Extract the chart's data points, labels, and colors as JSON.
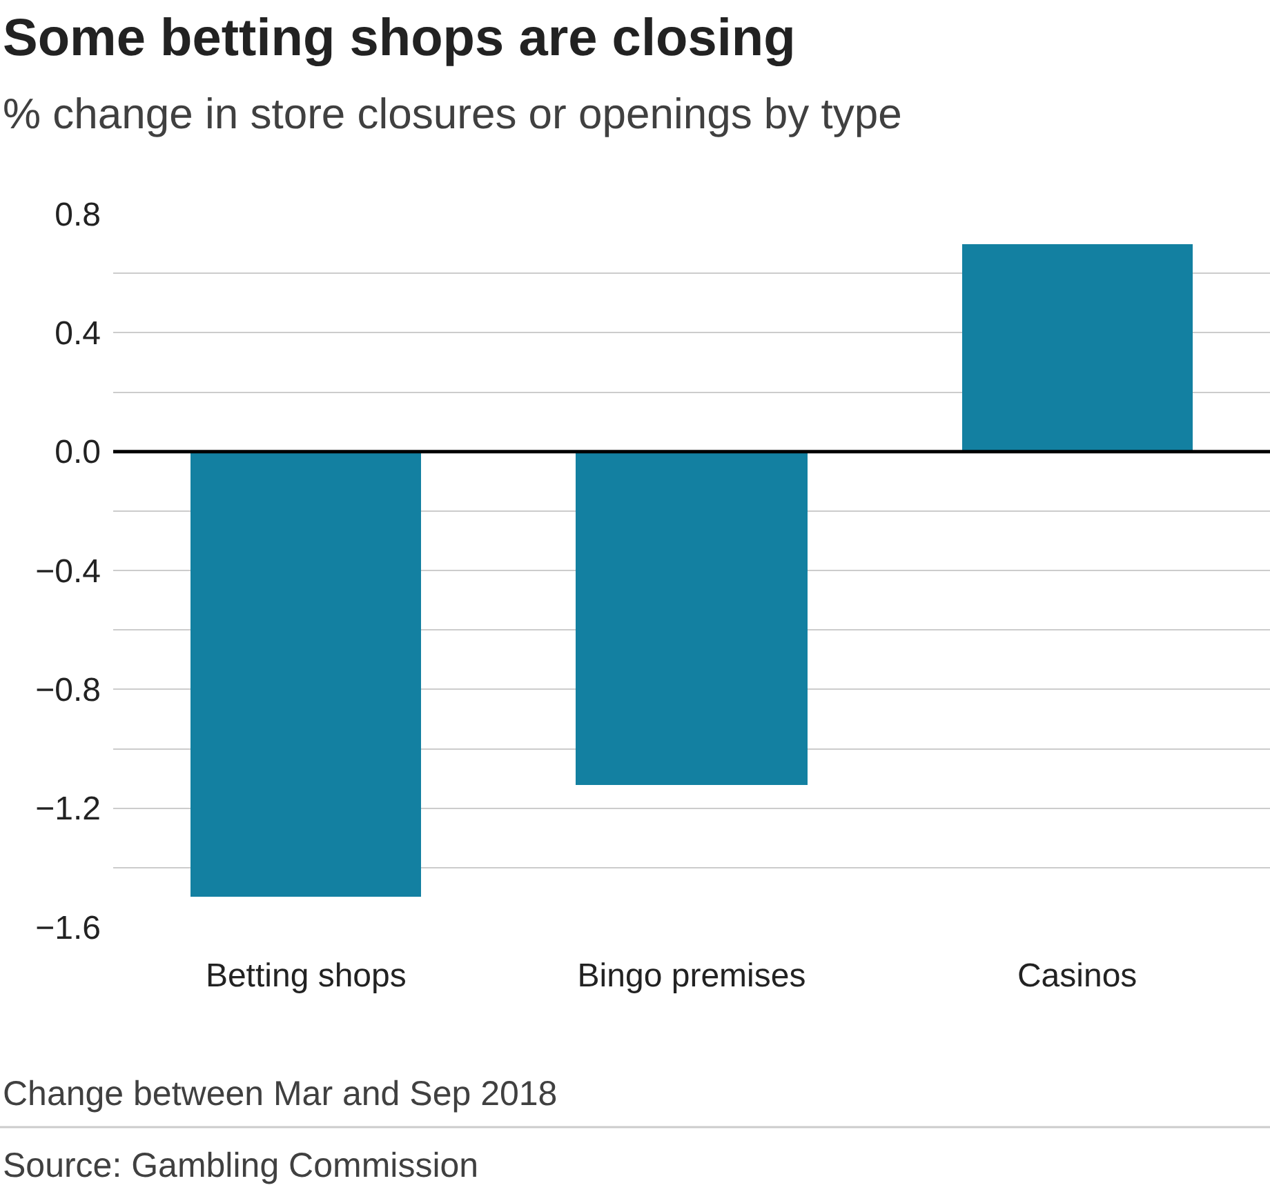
{
  "chart_data": {
    "type": "bar",
    "title": "Some betting shops are closing",
    "subtitle": "% change in store closures or openings by type",
    "categories": [
      "Betting shops",
      "Bingo premises",
      "Casinos"
    ],
    "values": [
      -1.5,
      -1.12,
      0.7
    ],
    "color": "#1380a1",
    "ylim": [
      -1.6,
      0.8
    ],
    "yticks": [
      {
        "value": -1.6,
        "label": "−1.6"
      },
      {
        "value": -1.4,
        "label": null
      },
      {
        "value": -1.2,
        "label": "−1.2"
      },
      {
        "value": -1.0,
        "label": null
      },
      {
        "value": -0.8,
        "label": "−0.8"
      },
      {
        "value": -0.6,
        "label": null
      },
      {
        "value": -0.4,
        "label": "−0.4"
      },
      {
        "value": -0.2,
        "label": null
      },
      {
        "value": 0,
        "label": "0.0"
      },
      {
        "value": 0.2,
        "label": null
      },
      {
        "value": 0.4,
        "label": "0.4"
      },
      {
        "value": 0.6,
        "label": null
      },
      {
        "value": 0.8,
        "label": "0.8"
      }
    ],
    "ref_lines": [
      {
        "axis": "y",
        "value": 0,
        "color": "#000000"
      }
    ],
    "grid": "y",
    "legend": false,
    "annotations": [
      "Change between Mar and Sep 2018",
      "Source: Gambling Commission"
    ]
  }
}
